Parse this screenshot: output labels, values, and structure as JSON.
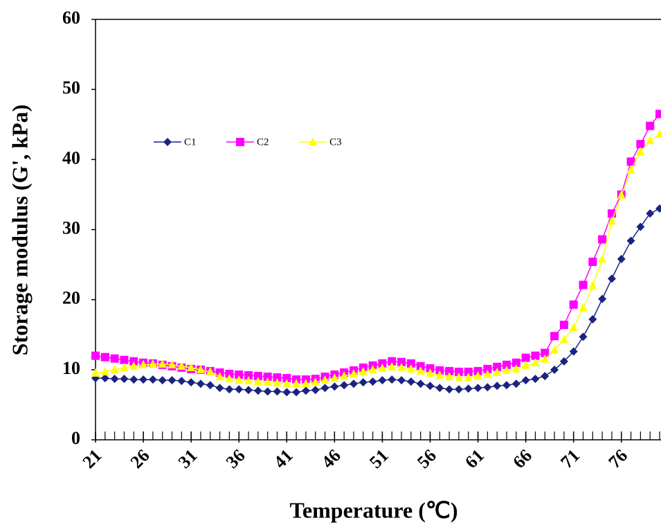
{
  "chart_data": {
    "type": "line",
    "xlabel": "Temperature (℃)",
    "ylabel": "Storage modulus (G', kPa)",
    "x": [
      21,
      22,
      23,
      24,
      25,
      26,
      27,
      28,
      29,
      30,
      31,
      32,
      33,
      34,
      35,
      36,
      37,
      38,
      39,
      40,
      41,
      42,
      43,
      44,
      45,
      46,
      47,
      48,
      49,
      50,
      51,
      52,
      53,
      54,
      55,
      56,
      57,
      58,
      59,
      60,
      61,
      62,
      63,
      64,
      65,
      66,
      67,
      68,
      69,
      70,
      71,
      72,
      73,
      74,
      75,
      76,
      77,
      78,
      79,
      80
    ],
    "xlim": [
      21,
      80
    ],
    "xticks": [
      21,
      26,
      31,
      36,
      41,
      46,
      51,
      56,
      61,
      66,
      71,
      76
    ],
    "ylim": [
      0,
      60
    ],
    "yticks": [
      0,
      10,
      20,
      30,
      40,
      50,
      60
    ],
    "series": [
      {
        "name": "C1",
        "color": "#1a237e",
        "marker": "diamond",
        "values": [
          8.8,
          8.8,
          8.7,
          8.7,
          8.6,
          8.6,
          8.6,
          8.5,
          8.5,
          8.4,
          8.2,
          8.0,
          7.8,
          7.4,
          7.2,
          7.2,
          7.1,
          7.0,
          6.9,
          6.9,
          6.8,
          6.8,
          7.0,
          7.1,
          7.4,
          7.6,
          7.8,
          8.0,
          8.2,
          8.3,
          8.5,
          8.6,
          8.5,
          8.3,
          8.0,
          7.7,
          7.4,
          7.2,
          7.2,
          7.3,
          7.4,
          7.5,
          7.7,
          7.8,
          8.0,
          8.5,
          8.7,
          9.1,
          10.0,
          11.2,
          12.6,
          14.7,
          17.2,
          20.1,
          23.0,
          25.8,
          28.4,
          30.4,
          32.3,
          33.0
        ]
      },
      {
        "name": "C2",
        "color": "#ff00ff",
        "marker": "square",
        "values": [
          12.0,
          11.8,
          11.6,
          11.4,
          11.2,
          11.0,
          10.9,
          10.7,
          10.5,
          10.3,
          10.1,
          10.0,
          9.8,
          9.6,
          9.4,
          9.3,
          9.2,
          9.1,
          9.0,
          8.9,
          8.8,
          8.6,
          8.6,
          8.7,
          9.0,
          9.3,
          9.6,
          9.9,
          10.3,
          10.6,
          10.9,
          11.2,
          11.1,
          10.9,
          10.5,
          10.2,
          9.9,
          9.8,
          9.7,
          9.7,
          9.8,
          10.1,
          10.4,
          10.7,
          11.0,
          11.7,
          12.0,
          12.4,
          14.8,
          16.4,
          19.3,
          22.1,
          25.4,
          28.6,
          32.3,
          35.0,
          39.7,
          42.2,
          44.8,
          46.5
        ]
      },
      {
        "name": "C3",
        "color": "#ffff00",
        "marker": "triangle",
        "values": [
          9.5,
          9.7,
          10.0,
          10.3,
          10.5,
          10.7,
          10.8,
          10.8,
          10.7,
          10.5,
          10.3,
          10.0,
          9.7,
          9.0,
          8.7,
          8.5,
          8.4,
          8.3,
          8.2,
          8.1,
          8.0,
          8.0,
          8.0,
          8.2,
          8.5,
          8.8,
          9.1,
          9.4,
          9.7,
          10.0,
          10.2,
          10.4,
          10.3,
          10.1,
          9.8,
          9.5,
          9.2,
          9.0,
          8.9,
          8.9,
          9.1,
          9.3,
          9.6,
          9.9,
          10.1,
          10.6,
          11.0,
          11.5,
          12.8,
          14.3,
          16.0,
          18.8,
          22.0,
          25.8,
          31.2,
          34.9,
          38.5,
          41.1,
          42.7,
          43.6
        ]
      }
    ]
  }
}
